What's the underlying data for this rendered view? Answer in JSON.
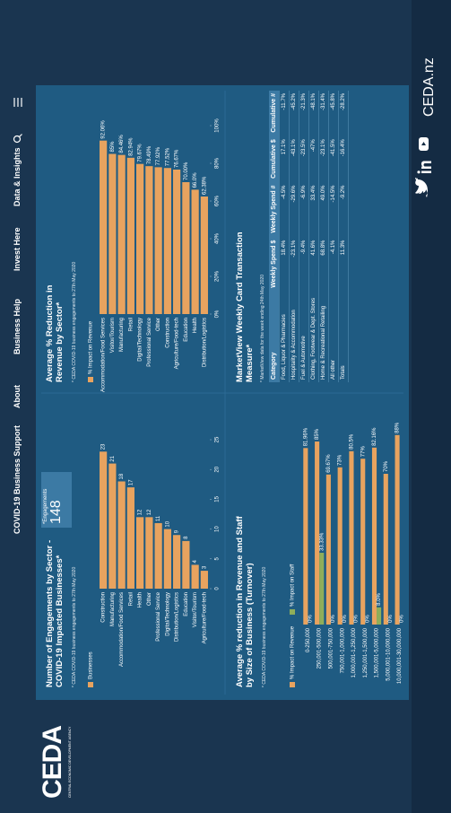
{
  "header": {
    "logo": "CEDA",
    "logo_tagline": "CENTRAL ECONOMIC DEVELOPMENT AGENCY",
    "nav": [
      "COVID-19 Business Support",
      "About",
      "Business Help",
      "Invest Here",
      "Data & Insights"
    ]
  },
  "engagements": {
    "label": "*Engagements",
    "value": 148
  },
  "chart_data": [
    {
      "type": "bar",
      "orientation": "horizontal",
      "title": "Number of Engagements by Sector - COVID-19 Impacted Businesses*",
      "note": "* CEDA COVID-19 business engagements to 27th May 2020",
      "categories": [
        "Construction",
        "Manufacturing",
        "Accommodation/Food Services",
        "Retail",
        "Health",
        "Other",
        "Professional Service",
        "Digital/Technology",
        "Distribution/Logistics",
        "Education",
        "Visitor/Tourism",
        "Agriculture/Food-tech"
      ],
      "series": [
        {
          "name": "Businesses",
          "color": "#e8a35f",
          "values": [
            23,
            21,
            18,
            17,
            12,
            12,
            11,
            10,
            9,
            8,
            4,
            3
          ]
        }
      ],
      "xlim": [
        0,
        25
      ],
      "xticks": [
        0,
        5,
        10,
        15,
        20,
        25
      ]
    },
    {
      "type": "bar",
      "orientation": "horizontal",
      "title": "Average % Reduction in Revenue by Sector*",
      "note": "* CEDA COVID-19 business engagements to 27th May 2020",
      "categories": [
        "Accommodation/Food Services",
        "Visitor/Tourism",
        "Manufacturing",
        "Retail",
        "Digital/Technology",
        "Professional Service",
        "Other",
        "Construction",
        "Agriculture/Food-tech",
        "Education",
        "Health",
        "Distribution/Logistics"
      ],
      "series": [
        {
          "name": "% Impact on Revenue",
          "color": "#e8a35f",
          "values": [
            92.06,
            85,
            84.46,
            82.94,
            79.67,
            78.49,
            77.92,
            77.52,
            76.67,
            70,
            66,
            62.38
          ],
          "value_labels": [
            "92.06%",
            "85%",
            "84.46%",
            "82.94%",
            "79.67%",
            "78.49%",
            "77.92%",
            "77.52%",
            "76.67%",
            "70.00%",
            "66.0%",
            "62.38%"
          ]
        }
      ],
      "xlim": [
        0,
        100
      ],
      "xticks": [
        {
          "value": 0,
          "label": "0%"
        },
        {
          "value": 20,
          "label": "20%"
        },
        {
          "value": 40,
          "label": "40%"
        },
        {
          "value": 60,
          "label": "60%"
        },
        {
          "value": 80,
          "label": "80%"
        },
        {
          "value": 100,
          "label": "100%"
        }
      ]
    },
    {
      "type": "bar",
      "orientation": "horizontal",
      "title": "Average % reduction in Revenue and Staff by Size of Business (Turnover)",
      "note": "* CEDA COVID-19 business engagements to 27th May 2020",
      "categories": [
        "0-250,000",
        "250,001-500,000",
        "500,001-750,000",
        "750,001-1,000,000",
        "1,000,001-1,250,000",
        "1,250,001-1,500,000",
        "1,500,001-5,000,000",
        "5,000,001-10,000,000",
        "10,000,001-30,000,000"
      ],
      "series": [
        {
          "name": "% Impact on Revenue",
          "color": "#e8a35f",
          "values": [
            81.96,
            85,
            69.67,
            73,
            80.5,
            77,
            82.16,
            70,
            88
          ],
          "value_labels": [
            "81.96%",
            "85%",
            "69.67%",
            "73%",
            "80.5%",
            "77%",
            "82.16%",
            "70%",
            "88%"
          ]
        },
        {
          "name": "% Impact on Staff",
          "color": "#8fae5a",
          "values": [
            0,
            33.33,
            0,
            0,
            0,
            0,
            8,
            0,
            0
          ],
          "value_labels": [
            "0%",
            "33.33%",
            "0%",
            "0%",
            "0%",
            "0%",
            "8.0%",
            "0%",
            "0%"
          ]
        }
      ],
      "xlim": [
        0,
        100
      ]
    }
  ],
  "table": {
    "title": "MarketView Weekly Card Transaction Measure*",
    "note": "* MarketView data for the week ending 24th May 2020",
    "columns": [
      "Category",
      "Weekly Spend $",
      "Weekly Spend #",
      "Cumulative $",
      "Cumulative #"
    ],
    "rows": [
      [
        "Food, Liquor & Pharmacies",
        "18.4%",
        "-4.5%",
        "17.1%",
        "-11.7%"
      ],
      [
        "Hospitality & Accommodation",
        "-23.1%",
        "-29.6%",
        "-43.1%",
        "-45.2%"
      ],
      [
        "Fuel & Automotive",
        "-9.4%",
        "-6.9%",
        "-23.5%",
        "-21.3%"
      ],
      [
        "Clothing, Footwear & Dept. Stores",
        "41.6%",
        "33.4%",
        "-47%",
        "-48.1%"
      ],
      [
        "Home & Recreational Retailing",
        "68.8%",
        "49.0%",
        "-23.1%",
        "-31.4%"
      ],
      [
        "All other",
        "-4.1%",
        "-14.5%",
        "-41.5%",
        "-45.8%"
      ],
      [
        "Totals",
        "11.3%",
        "-9.2%",
        "-16.4%",
        "-28.2%"
      ]
    ]
  },
  "footer": {
    "site": "CEDA.nz"
  }
}
